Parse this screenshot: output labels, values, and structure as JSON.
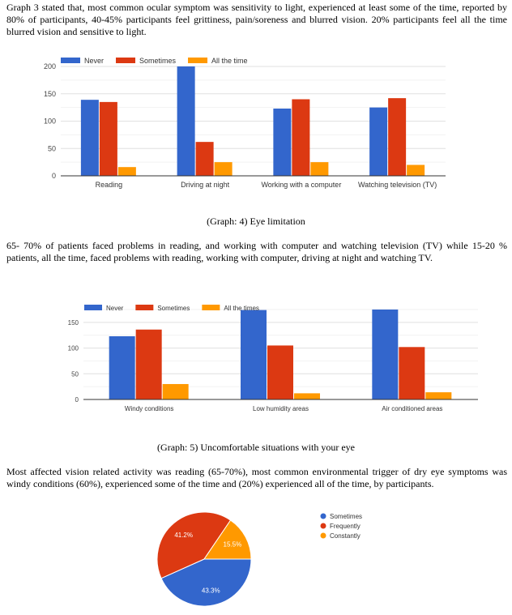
{
  "paragraphs": [
    "Graph 3 stated that, most common ocular symptom was sensitivity to light, experienced at least some of the time, reported by 80% of participants, 40-45% participants feel grittiness, pain/soreness and blurred vision. 20% participants feel all the time blurred vision and sensitive to light.",
    "65- 70% of patients faced problems in reading, and working with computer and watching television (TV) while 15-20 % patients, all the time, faced problems with reading, working with computer, driving at night and watching TV.",
    "Most affected vision related activity was reading (65-70%), most common environmental trigger of dry eye symptoms was windy conditions (60%), experienced some of the time and (20%) experienced all of the time, by participants."
  ],
  "captions": [
    "(Graph: 4) Eye limitation",
    "(Graph: 5) Uncomfortable situations with your eye"
  ],
  "colors": {
    "blue": "#3366cc",
    "red": "#dc3912",
    "orange": "#ff9900"
  },
  "chart_data": [
    {
      "type": "bar",
      "title": "(Graph: 4) Eye limitation",
      "categories": [
        "Reading",
        "Driving at night",
        "Working with a computer",
        "Watching television (TV)"
      ],
      "series": [
        {
          "name": "Never",
          "values": [
            139,
            200,
            123,
            125
          ]
        },
        {
          "name": "Sometimes",
          "values": [
            135,
            62,
            140,
            142
          ]
        },
        {
          "name": "All the time",
          "values": [
            16,
            25,
            25,
            20
          ]
        }
      ],
      "yticks": [
        0,
        50,
        100,
        150,
        200
      ],
      "ylim": [
        0,
        200
      ],
      "legend": "top-left",
      "grid": true
    },
    {
      "type": "bar",
      "title": "(Graph: 5) Uncomfortable situations with your eye",
      "categories": [
        "Windy conditions",
        "Low humidity areas",
        "Air conditioned areas"
      ],
      "series": [
        {
          "name": "Never",
          "values": [
            123,
            174,
            175
          ]
        },
        {
          "name": "Sometimes",
          "values": [
            136,
            105,
            102
          ]
        },
        {
          "name": "All the times",
          "values": [
            30,
            12,
            14
          ]
        }
      ],
      "yticks": [
        0,
        50,
        100,
        150
      ],
      "ylim": [
        0,
        175
      ],
      "legend": "top-left",
      "grid": true
    },
    {
      "type": "pie",
      "slices": [
        {
          "name": "Sometimes",
          "value": 43.3,
          "label": "43.3%"
        },
        {
          "name": "Frequently",
          "value": 41.2,
          "label": "41.2%"
        },
        {
          "name": "Constantly",
          "value": 15.5,
          "label": "15.5%"
        }
      ],
      "legend": "right"
    }
  ]
}
